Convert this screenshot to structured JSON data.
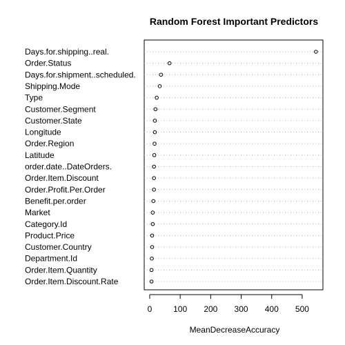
{
  "chart_data": {
    "type": "scatter",
    "title": "Random Forest Important Predictors",
    "xlabel": "MeanDecreaseAccuracy",
    "ylabel": "",
    "xlim": [
      -18,
      568
    ],
    "xticks": [
      0,
      100,
      200,
      300,
      400,
      500
    ],
    "grid": "horizontal dotted lines",
    "categories": [
      "Days.for.shipping..real.",
      "Order.Status",
      "Days.for.shipment..scheduled.",
      "Shipping.Mode",
      "Type",
      "Customer.Segment",
      "Customer.State",
      "Longitude",
      "Order.Region",
      "Latitude",
      "order.date..DateOrders.",
      "Order.Item.Discount",
      "Order.Profit.Per.Order",
      "Benefit.per.order",
      "Market",
      "Category.Id",
      "Product.Price",
      "Customer.Country",
      "Department.Id",
      "Order.Item.Quantity",
      "Order.Item.Discount.Rate"
    ],
    "values": [
      545,
      65,
      37,
      33,
      23,
      19,
      17,
      17,
      16,
      15,
      14,
      14,
      14,
      12,
      10,
      10,
      8,
      8,
      7,
      6,
      6
    ]
  }
}
